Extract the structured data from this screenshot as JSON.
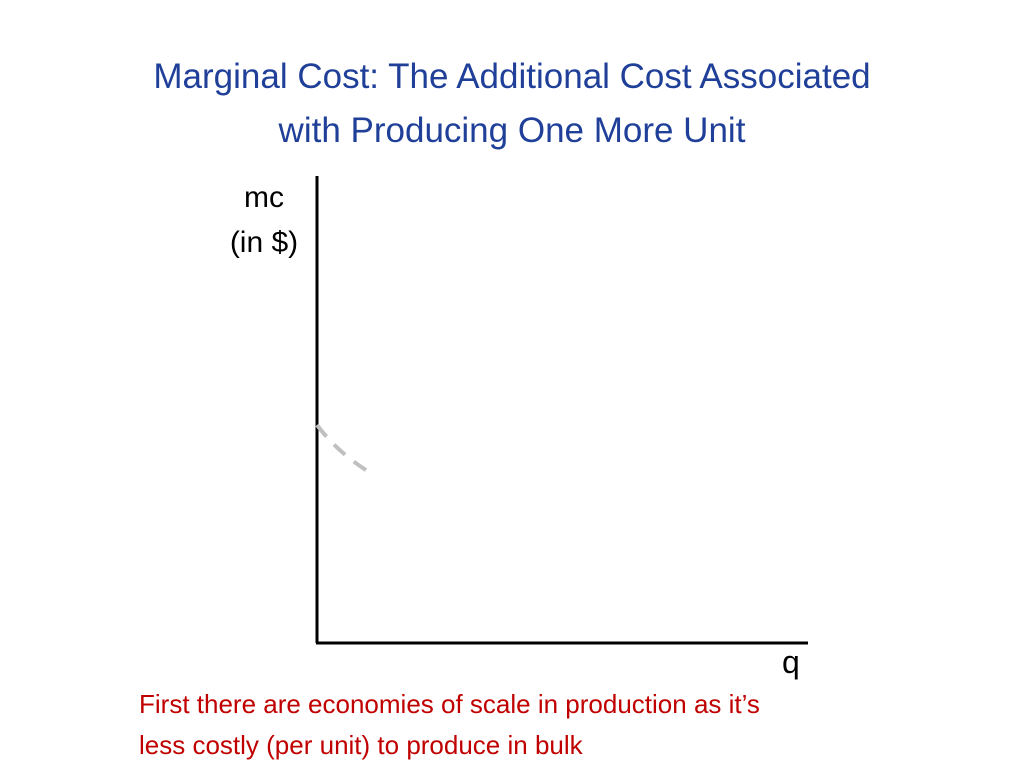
{
  "title": {
    "line1": "Marginal Cost: The Additional Cost Associated",
    "line2": "with Producing One More Unit"
  },
  "y_axis_label": {
    "line1": "mc",
    "line2": "(in $)"
  },
  "x_axis_label": "q",
  "caption": {
    "line1": "First there are economies of scale in production as it’s",
    "line2": "less costly (per unit) to produce in bulk"
  },
  "colors": {
    "title": "#1f3f99",
    "caption": "#c00000",
    "axis": "#000000",
    "curve": "#c0c0c0"
  }
}
